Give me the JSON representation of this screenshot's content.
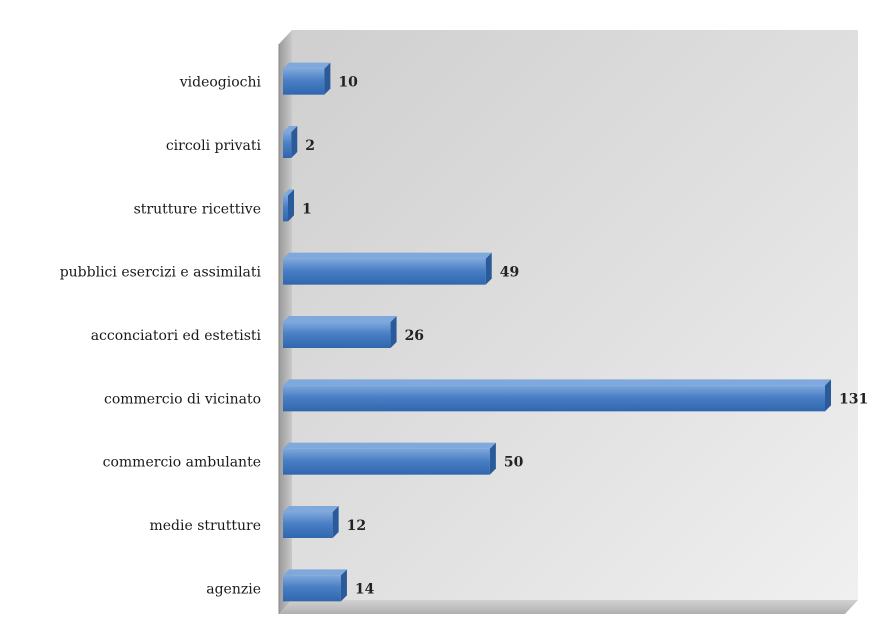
{
  "chart_data": {
    "type": "bar",
    "orientation": "horizontal",
    "style": "3d",
    "categories": [
      "videogiochi",
      "circoli privati",
      "strutture ricettive",
      "pubblici esercizi e assimilati",
      "acconciatori ed estetisti",
      "commercio di vicinato",
      "commercio ambulante",
      "medie strutture",
      "agenzie"
    ],
    "values": [
      10,
      2,
      1,
      49,
      26,
      131,
      50,
      12,
      14
    ],
    "data_labels": [
      "10",
      "2",
      "1",
      "49",
      "26",
      "131",
      "50",
      "12",
      "14"
    ],
    "xlim": [
      0,
      131
    ],
    "title": "",
    "xlabel": "",
    "ylabel": "",
    "grid": false,
    "legend": "none",
    "colors": {
      "bar": "#4a7fc5",
      "bar_dark": "#2b5a9a",
      "bar_light": "#7fa8dc",
      "wall": "#d8d8d8",
      "floor": "#c4c4c4"
    }
  }
}
